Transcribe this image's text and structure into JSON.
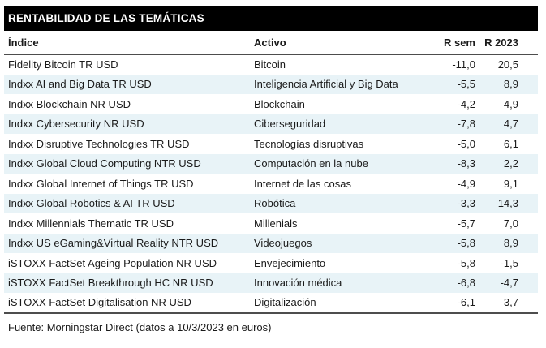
{
  "title": "RENTABILIDAD DE LAS TEMÁTICAS",
  "table": {
    "columns": [
      "Índice",
      "Activo",
      "R sem",
      "R 2023"
    ],
    "rows": [
      {
        "indice": "Fidelity Bitcoin TR USD",
        "activo": "Bitcoin",
        "r_sem": "-11,0",
        "r_2023": "20,5"
      },
      {
        "indice": "Indxx AI and Big Data TR USD",
        "activo": "Inteligencia Artificial y Big Data",
        "r_sem": "-5,5",
        "r_2023": "8,9"
      },
      {
        "indice": "Indxx Blockchain NR USD",
        "activo": "Blockchain",
        "r_sem": "-4,2",
        "r_2023": "4,9"
      },
      {
        "indice": "Indxx Cybersecurity NR USD",
        "activo": "Ciberseguridad",
        "r_sem": "-7,8",
        "r_2023": "4,7"
      },
      {
        "indice": "Indxx Disruptive Technologies TR USD",
        "activo": "Tecnologías disruptivas",
        "r_sem": "-5,0",
        "r_2023": "6,1"
      },
      {
        "indice": "Indxx Global Cloud Computing NTR USD",
        "activo": "Computación en la nube",
        "r_sem": "-8,3",
        "r_2023": "2,2"
      },
      {
        "indice": "Indxx Global Internet of Things TR USD",
        "activo": "Internet de las cosas",
        "r_sem": "-4,9",
        "r_2023": "9,1"
      },
      {
        "indice": "Indxx Global Robotics & AI TR USD",
        "activo": "Robótica",
        "r_sem": "-3,3",
        "r_2023": "14,3"
      },
      {
        "indice": "Indxx Millennials Thematic TR USD",
        "activo": "Millenials",
        "r_sem": "-5,7",
        "r_2023": "7,0"
      },
      {
        "indice": "Indxx US eGaming&Virtual Reality NTR USD",
        "activo": "Videojuegos",
        "r_sem": "-5,8",
        "r_2023": "8,9"
      },
      {
        "indice": "iSTOXX FactSet Ageing Population NR USD",
        "activo": "Envejecimiento",
        "r_sem": "-5,8",
        "r_2023": "-1,5"
      },
      {
        "indice": "iSTOXX FactSet Breakthrough HC NR USD",
        "activo": "Innovación médica",
        "r_sem": "-6,8",
        "r_2023": "-4,7"
      },
      {
        "indice": "iSTOXX FactSet Digitalisation NR USD",
        "activo": "Digitalización",
        "r_sem": "-6,1",
        "r_2023": "3,7"
      }
    ]
  },
  "footer": {
    "source": "Fuente: Morningstar Direct (datos a 10/3/2023 en euros)"
  },
  "colors": {
    "header_bg": "#000000",
    "header_text": "#ffffff",
    "alt_row_bg": "#e8f3f7",
    "text": "#1a1a1a",
    "rule": "#4d4d4d"
  }
}
